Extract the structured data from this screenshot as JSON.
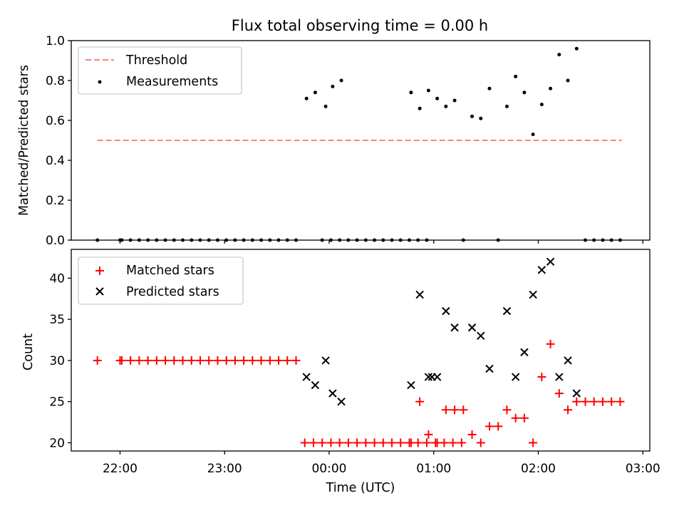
{
  "title": "Flux total observing time = 0.00 h",
  "xlabel": "Time (UTC)",
  "chart_data": [
    {
      "type": "scatter",
      "ylabel": "Matched/Predicted stars",
      "ylim": [
        0,
        1.0
      ],
      "yticks": [
        "0.0",
        "0.2",
        "0.4",
        "0.6",
        "0.8",
        "1.0"
      ],
      "ytick_values": [
        0,
        0.2,
        0.4,
        0.6,
        0.8,
        1.0
      ],
      "xlim": [
        "21:32",
        "03:04"
      ],
      "legend_position": "upper-left",
      "threshold": {
        "name": "Threshold",
        "value": 0.5,
        "x_range": [
          "21:47",
          "02:48"
        ],
        "color": "#ff7f7f"
      },
      "series": [
        {
          "name": "Measurements",
          "marker": "dot",
          "color": "#000000",
          "points": [
            [
              "21:47",
              0.0
            ],
            [
              "22:00",
              0.0
            ],
            [
              "22:01",
              0.0
            ],
            [
              "22:06",
              0.0
            ],
            [
              "22:11",
              0.0
            ],
            [
              "22:16",
              0.0
            ],
            [
              "22:21",
              0.0
            ],
            [
              "22:26",
              0.0
            ],
            [
              "22:31",
              0.0
            ],
            [
              "22:36",
              0.0
            ],
            [
              "22:41",
              0.0
            ],
            [
              "22:46",
              0.0
            ],
            [
              "22:51",
              0.0
            ],
            [
              "22:56",
              0.0
            ],
            [
              "23:01",
              0.0
            ],
            [
              "23:06",
              0.0
            ],
            [
              "23:11",
              0.0
            ],
            [
              "23:16",
              0.0
            ],
            [
              "23:21",
              0.0
            ],
            [
              "23:26",
              0.0
            ],
            [
              "23:31",
              0.0
            ],
            [
              "23:36",
              0.0
            ],
            [
              "23:41",
              0.0
            ],
            [
              "23:47",
              0.71
            ],
            [
              "23:52",
              0.74
            ],
            [
              "23:58",
              0.67
            ],
            [
              "23:56",
              0.0
            ],
            [
              "00:01",
              0.0
            ],
            [
              "00:06",
              0.0
            ],
            [
              "00:11",
              0.0
            ],
            [
              "00:02",
              0.77
            ],
            [
              "00:07",
              0.8
            ],
            [
              "00:16",
              0.0
            ],
            [
              "00:21",
              0.0
            ],
            [
              "00:26",
              0.0
            ],
            [
              "00:31",
              0.0
            ],
            [
              "00:36",
              0.0
            ],
            [
              "00:41",
              0.0
            ],
            [
              "00:46",
              0.0
            ],
            [
              "00:51",
              0.0
            ],
            [
              "00:56",
              0.0
            ],
            [
              "00:47",
              0.74
            ],
            [
              "00:52",
              0.66
            ],
            [
              "00:57",
              0.75
            ],
            [
              "01:02",
              0.71
            ],
            [
              "01:07",
              0.67
            ],
            [
              "01:12",
              0.7
            ],
            [
              "01:17",
              0.0
            ],
            [
              "01:22",
              0.62
            ],
            [
              "01:27",
              0.61
            ],
            [
              "01:32",
              0.76
            ],
            [
              "01:37",
              0.0
            ],
            [
              "01:42",
              0.67
            ],
            [
              "01:47",
              0.82
            ],
            [
              "01:52",
              0.74
            ],
            [
              "01:57",
              0.53
            ],
            [
              "02:02",
              0.68
            ],
            [
              "02:07",
              0.76
            ],
            [
              "02:12",
              0.93
            ],
            [
              "02:17",
              0.8
            ],
            [
              "02:22",
              0.96
            ],
            [
              "02:27",
              0.0
            ],
            [
              "02:32",
              0.0
            ],
            [
              "02:37",
              0.0
            ],
            [
              "02:42",
              0.0
            ],
            [
              "02:47",
              0.0
            ]
          ]
        }
      ]
    },
    {
      "type": "scatter",
      "ylabel": "Count",
      "ylim": [
        19,
        43.5
      ],
      "yticks": [
        "20",
        "25",
        "30",
        "35",
        "40"
      ],
      "ytick_values": [
        20,
        25,
        30,
        35,
        40
      ],
      "xlim": [
        "21:32",
        "03:04"
      ],
      "xticks": [
        "22:00",
        "23:00",
        "00:00",
        "01:00",
        "02:00",
        "03:00"
      ],
      "legend_position": "upper-left",
      "series": [
        {
          "name": "Matched stars",
          "marker": "plus",
          "color": "#ff0000",
          "points": [
            [
              "21:47",
              30
            ],
            [
              "22:00",
              30
            ],
            [
              "22:01",
              30
            ],
            [
              "22:06",
              30
            ],
            [
              "22:11",
              30
            ],
            [
              "22:16",
              30
            ],
            [
              "22:21",
              30
            ],
            [
              "22:26",
              30
            ],
            [
              "22:31",
              30
            ],
            [
              "22:36",
              30
            ],
            [
              "22:41",
              30
            ],
            [
              "22:46",
              30
            ],
            [
              "22:51",
              30
            ],
            [
              "22:56",
              30
            ],
            [
              "23:01",
              30
            ],
            [
              "23:06",
              30
            ],
            [
              "23:11",
              30
            ],
            [
              "23:16",
              30
            ],
            [
              "23:21",
              30
            ],
            [
              "23:26",
              30
            ],
            [
              "23:31",
              30
            ],
            [
              "23:36",
              30
            ],
            [
              "23:41",
              30
            ],
            [
              "23:46",
              20
            ],
            [
              "23:51",
              20
            ],
            [
              "23:56",
              20
            ],
            [
              "00:01",
              20
            ],
            [
              "00:06",
              20
            ],
            [
              "00:11",
              20
            ],
            [
              "00:16",
              20
            ],
            [
              "00:21",
              20
            ],
            [
              "00:26",
              20
            ],
            [
              "00:31",
              20
            ],
            [
              "00:36",
              20
            ],
            [
              "00:41",
              20
            ],
            [
              "00:46",
              20
            ],
            [
              "00:51",
              20
            ],
            [
              "00:56",
              20
            ],
            [
              "01:01",
              20
            ],
            [
              "01:06",
              20
            ],
            [
              "01:11",
              20
            ],
            [
              "01:16",
              20
            ],
            [
              "00:47",
              20
            ],
            [
              "00:52",
              25
            ],
            [
              "00:57",
              21
            ],
            [
              "01:02",
              20
            ],
            [
              "01:07",
              24
            ],
            [
              "01:12",
              24
            ],
            [
              "01:17",
              24
            ],
            [
              "01:22",
              21
            ],
            [
              "01:27",
              20
            ],
            [
              "01:32",
              22
            ],
            [
              "01:37",
              22
            ],
            [
              "01:42",
              24
            ],
            [
              "01:47",
              23
            ],
            [
              "01:52",
              23
            ],
            [
              "01:57",
              20
            ],
            [
              "02:02",
              28
            ],
            [
              "02:07",
              32
            ],
            [
              "02:12",
              26
            ],
            [
              "02:17",
              24
            ],
            [
              "02:22",
              25
            ],
            [
              "02:27",
              25
            ],
            [
              "02:32",
              25
            ],
            [
              "02:37",
              25
            ],
            [
              "02:42",
              25
            ],
            [
              "02:47",
              25
            ]
          ]
        },
        {
          "name": "Predicted stars",
          "marker": "x",
          "color": "#000000",
          "points": [
            [
              "23:47",
              28
            ],
            [
              "23:52",
              27
            ],
            [
              "23:58",
              30
            ],
            [
              "00:02",
              26
            ],
            [
              "00:07",
              25
            ],
            [
              "00:47",
              27
            ],
            [
              "00:52",
              38
            ],
            [
              "00:57",
              28
            ],
            [
              "00:59",
              28
            ],
            [
              "01:02",
              28
            ],
            [
              "01:07",
              36
            ],
            [
              "01:12",
              34
            ],
            [
              "01:22",
              34
            ],
            [
              "01:27",
              33
            ],
            [
              "01:32",
              29
            ],
            [
              "01:42",
              36
            ],
            [
              "01:47",
              28
            ],
            [
              "01:52",
              31
            ],
            [
              "01:57",
              38
            ],
            [
              "02:02",
              41
            ],
            [
              "02:07",
              42
            ],
            [
              "02:12",
              28
            ],
            [
              "02:17",
              30
            ],
            [
              "02:22",
              26
            ]
          ]
        }
      ]
    }
  ]
}
